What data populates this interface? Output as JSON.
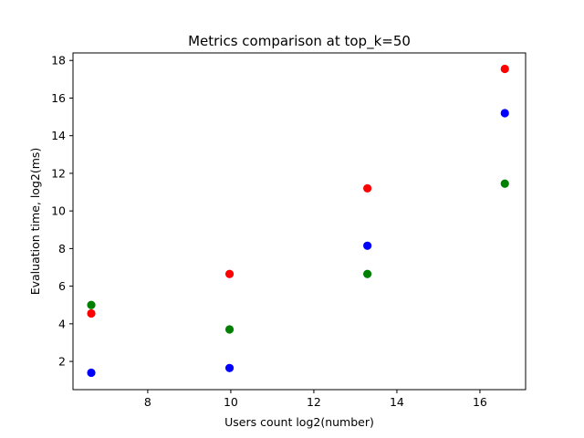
{
  "chart_data": {
    "type": "scatter",
    "title": "Metrics comparison at top_k=50",
    "xlabel": "Users count log2(number)",
    "ylabel": "Evaluation time, log2(ms)",
    "xlim": [
      6.2,
      17.1
    ],
    "ylim": [
      0.5,
      18.4
    ],
    "xticks": [
      8,
      10,
      12,
      14,
      16
    ],
    "yticks": [
      2,
      4,
      6,
      8,
      10,
      12,
      14,
      16,
      18
    ],
    "grid": false,
    "legend": null,
    "series": [
      {
        "color": "#ff0000",
        "points": [
          {
            "x": 6.64,
            "y": 4.55
          },
          {
            "x": 9.97,
            "y": 6.65
          },
          {
            "x": 13.29,
            "y": 11.2
          },
          {
            "x": 16.6,
            "y": 17.55
          }
        ]
      },
      {
        "color": "#008000",
        "points": [
          {
            "x": 6.64,
            "y": 5.0
          },
          {
            "x": 9.97,
            "y": 3.7
          },
          {
            "x": 13.29,
            "y": 6.65
          },
          {
            "x": 16.6,
            "y": 11.45
          }
        ]
      },
      {
        "color": "#0000ff",
        "points": [
          {
            "x": 6.64,
            "y": 1.4
          },
          {
            "x": 9.97,
            "y": 1.65
          },
          {
            "x": 13.29,
            "y": 8.15
          },
          {
            "x": 16.6,
            "y": 15.2
          }
        ]
      }
    ]
  }
}
